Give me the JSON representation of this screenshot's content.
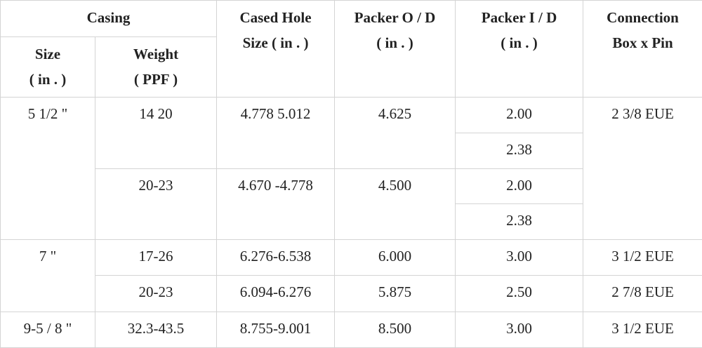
{
  "header": {
    "casing": "Casing",
    "size": [
      "Size",
      "( in . )"
    ],
    "weight": [
      "Weight",
      "( PPF )"
    ],
    "cased_hole": [
      "Cased Hole",
      "Size ( in . )"
    ],
    "packer_od": [
      "Packer O / D",
      "( in . )"
    ],
    "packer_id": [
      "Packer I / D",
      "( in . )"
    ],
    "connection": [
      "Connection",
      "Box x Pin"
    ]
  },
  "groups": [
    {
      "size": "5 1/2 \"",
      "connection": "2 3/8 EUE",
      "rows": [
        {
          "weight": "14 20",
          "cased_hole": "4.778 5.012",
          "packer_od": "4.625",
          "packer_id": [
            "2.00",
            "2.38"
          ]
        },
        {
          "weight": "20-23",
          "cased_hole": "4.670 -4.778",
          "packer_od": "4.500",
          "packer_id": [
            "2.00",
            "2.38"
          ]
        }
      ]
    },
    {
      "size": "7 \"",
      "rows": [
        {
          "weight": "17-26",
          "cased_hole": "6.276-6.538",
          "packer_od": "6.000",
          "packer_id": "3.00",
          "connection": "3 1/2 EUE"
        },
        {
          "weight": "20-23",
          "cased_hole": "6.094-6.276",
          "packer_od": "5.875",
          "packer_id": "2.50",
          "connection": "2 7/8 EUE"
        }
      ]
    },
    {
      "size": "9-5 / 8 \"",
      "rows": [
        {
          "weight": "32.3-43.5",
          "cased_hole": "8.755-9.001",
          "packer_od": "8.500",
          "packer_id": "3.00",
          "connection": "3 1/2 EUE"
        }
      ]
    }
  ]
}
